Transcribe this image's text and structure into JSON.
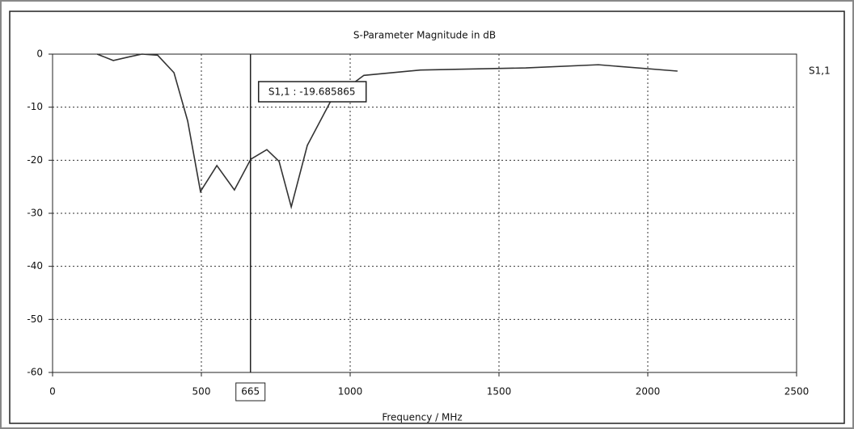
{
  "chart_data": {
    "type": "line",
    "title": "S-Parameter Magnitude in dB",
    "x_label": "Frequency / MHz",
    "x": [
      150,
      204,
      258,
      300,
      353,
      408,
      454,
      497,
      552,
      611,
      666,
      720,
      761,
      802,
      856,
      938,
      1046,
      1236,
      1590,
      1834,
      2100
    ],
    "series": [
      {
        "name": "S1,1",
        "color": "#333333",
        "values": [
          0,
          -1.2,
          -0.5,
          0,
          -0.2,
          -3.5,
          -12.6,
          -25.9,
          -21,
          -25.6,
          -19.8,
          -18,
          -20.2,
          -28.8,
          -17.2,
          -8.5,
          -4,
          -3,
          -2.6,
          -2,
          -3.2
        ]
      }
    ],
    "xlim": [
      0,
      2500
    ],
    "xticks": [
      0,
      500,
      1000,
      1500,
      2000,
      2500
    ],
    "ylim": [
      -60,
      0
    ],
    "yticks": [
      0,
      -10,
      -20,
      -30,
      -40,
      -50,
      -60
    ],
    "grid": true,
    "marker_x": 665,
    "annotation": "S1,1 : -19.685865"
  }
}
